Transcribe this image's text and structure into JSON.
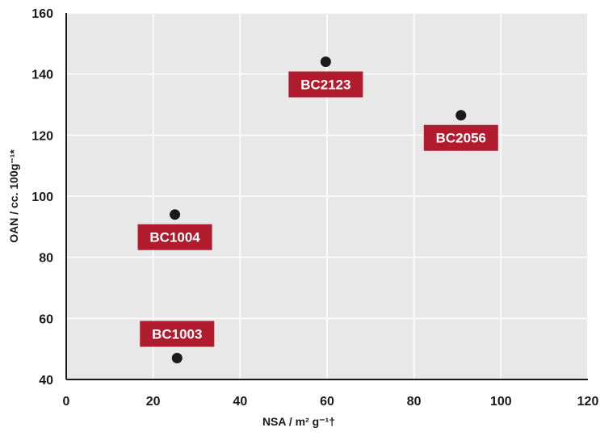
{
  "chart_data": {
    "type": "scatter",
    "title": "",
    "xlabel": "NSA / m² g⁻¹†",
    "ylabel": "OAN / cc. 100g⁻¹*",
    "xlim": [
      0,
      120
    ],
    "ylim": [
      40,
      160
    ],
    "xticks": [
      0,
      20,
      40,
      60,
      80,
      100,
      120
    ],
    "yticks": [
      40,
      60,
      80,
      100,
      120,
      140,
      160
    ],
    "grid": true,
    "legend": "none",
    "points": [
      {
        "label": "BC1003",
        "x": 25.5,
        "y": 47,
        "label_side": "above"
      },
      {
        "label": "BC1004",
        "x": 25,
        "y": 94,
        "label_side": "below"
      },
      {
        "label": "BC2123",
        "x": 59.7,
        "y": 144,
        "label_side": "below"
      },
      {
        "label": "BC2056",
        "x": 90.8,
        "y": 126.5,
        "label_side": "below"
      }
    ],
    "colors": {
      "plot_background": "#e8e8e8",
      "grid": "#ffffff",
      "marker": "#1a1a1a",
      "label_background": "#b01c2e",
      "label_text": "#ffffff"
    }
  }
}
